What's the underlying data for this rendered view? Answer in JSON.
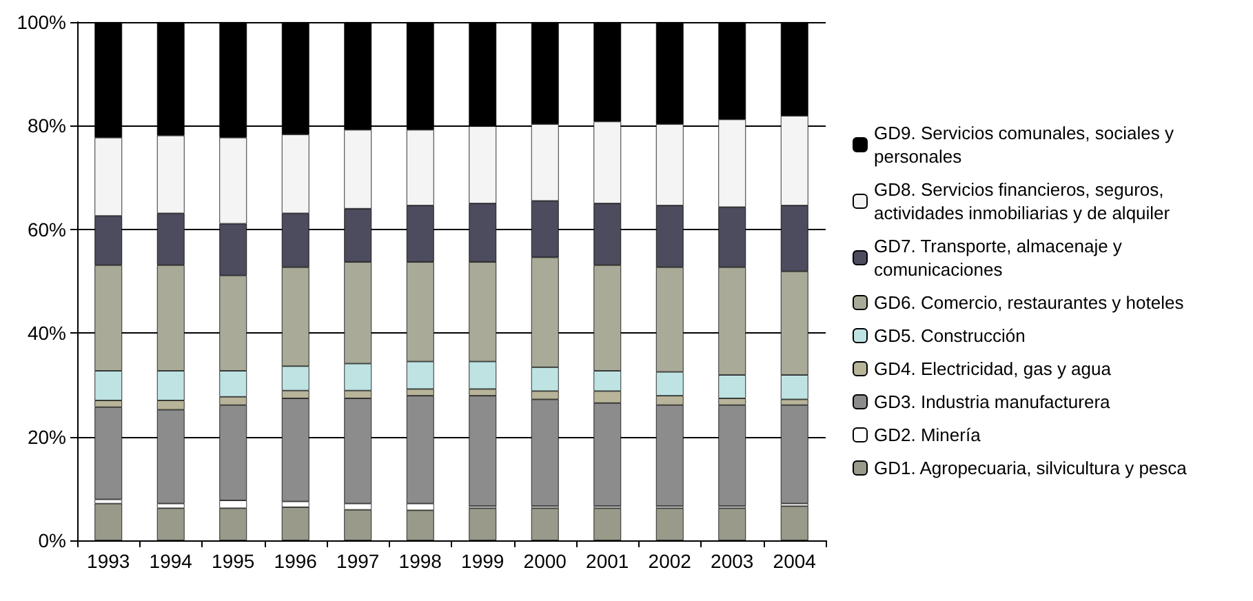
{
  "chart_data": {
    "type": "bar",
    "stacked": true,
    "categories": [
      "1993",
      "1994",
      "1995",
      "1996",
      "1997",
      "1998",
      "1999",
      "2000",
      "2001",
      "2002",
      "2003",
      "2004"
    ],
    "series": [
      {
        "name": "GD1. Agropecuaria, silvicultura y pesca",
        "color": "#9a9a8a",
        "values": [
          7.1,
          6.2,
          6.2,
          6.4,
          5.9,
          5.8,
          6.2,
          6.2,
          6.2,
          6.2,
          6.2,
          6.6
        ]
      },
      {
        "name": "GD2. Minería",
        "color": "#ffffff",
        "values": [
          0.8,
          0.9,
          1.5,
          1.1,
          1.2,
          1.3,
          0.4,
          0.4,
          0.4,
          0.4,
          0.4,
          0.5
        ]
      },
      {
        "name": "GD3. Industria manufacturera",
        "color": "#8c8c8c",
        "values": [
          17.8,
          18.1,
          18.4,
          19.9,
          20.3,
          20.8,
          21.3,
          20.6,
          19.9,
          19.5,
          19.5,
          19.0
        ]
      },
      {
        "name": "GD4. Electricidad, gas y agua",
        "color": "#b8b49a",
        "values": [
          1.3,
          1.8,
          1.6,
          1.5,
          1.5,
          1.3,
          1.3,
          1.6,
          2.3,
          1.8,
          1.3,
          1.1
        ]
      },
      {
        "name": "GD5. Construcción",
        "color": "#bfe3e3",
        "values": [
          5.7,
          5.7,
          5.0,
          4.7,
          5.2,
          5.3,
          5.3,
          4.6,
          3.9,
          4.6,
          4.5,
          4.7
        ]
      },
      {
        "name": "GD6. Comercio, restaurantes y hoteles",
        "color": "#a9ab98",
        "values": [
          20.4,
          20.4,
          18.4,
          19.1,
          19.6,
          19.2,
          19.2,
          21.2,
          20.4,
          20.2,
          20.8,
          20.0
        ]
      },
      {
        "name": "GD7. Transporte, almacenaje y comunicaciones",
        "color": "#4c4c5e",
        "values": [
          9.5,
          10.0,
          10.0,
          10.4,
          10.3,
          10.9,
          11.3,
          10.9,
          11.9,
          11.9,
          11.6,
          12.7
        ]
      },
      {
        "name": "GD8. Servicios financieros, seguros, actividades inmobiliarias y de alquiler",
        "color": "#f4f4f4",
        "values": [
          15.1,
          15.0,
          16.6,
          15.2,
          15.2,
          14.6,
          14.9,
          14.8,
          15.8,
          15.7,
          16.9,
          17.3
        ]
      },
      {
        "name": "GD9. Servicios comunales, sociales y personales",
        "color": "#000000",
        "values": [
          22.3,
          21.9,
          22.3,
          21.7,
          20.8,
          20.8,
          20.1,
          19.7,
          19.2,
          19.7,
          18.8,
          18.1
        ]
      }
    ],
    "ylim": [
      0,
      100
    ],
    "yticks": [
      {
        "value": 0,
        "label": "0%"
      },
      {
        "value": 20,
        "label": "20%"
      },
      {
        "value": 40,
        "label": "40%"
      },
      {
        "value": 60,
        "label": "60%"
      },
      {
        "value": 80,
        "label": "80%"
      },
      {
        "value": 100,
        "label": "100%"
      }
    ],
    "grid": "y",
    "legend": "right"
  }
}
